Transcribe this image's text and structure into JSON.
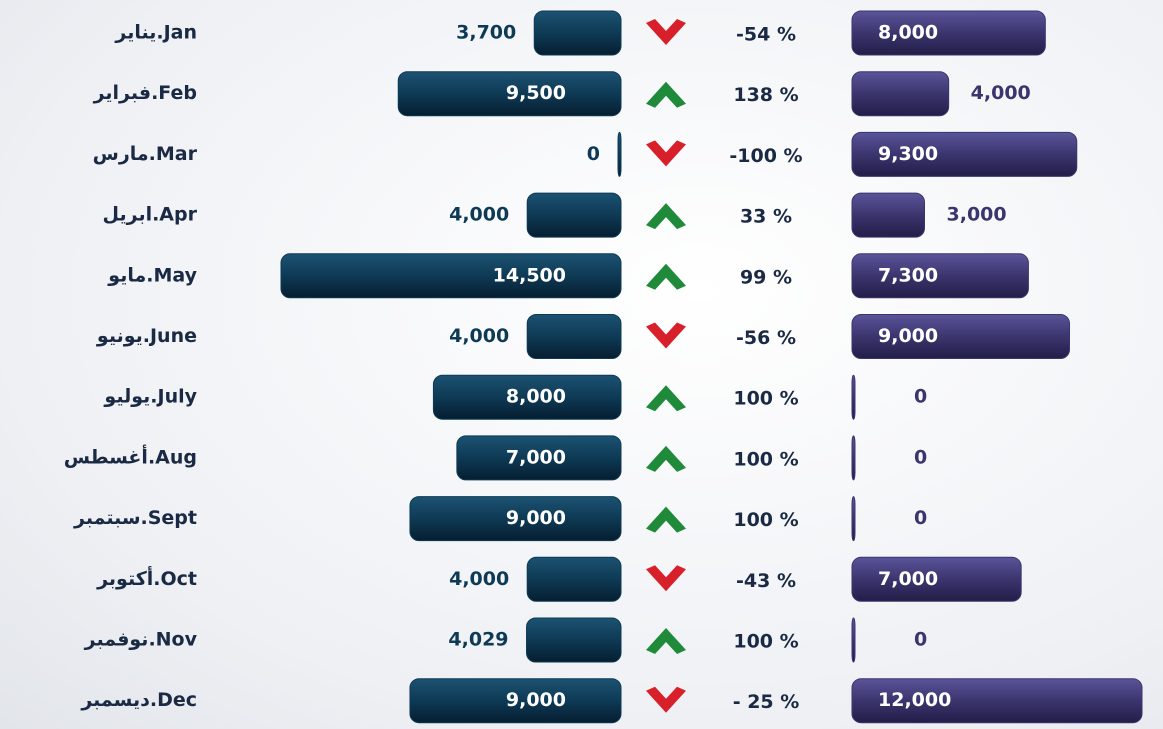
{
  "chart_data": {
    "type": "butterfly",
    "categories": [
      "يناير.Jan",
      "فبراير.Feb",
      "مارس.Mar",
      "ابريل.Apr",
      "مايو.May",
      "يونيو.June",
      "يوليو.July",
      "أغسطس.Aug",
      "سبتمبر.Sept",
      "أكتوبر.Oct",
      "نوفمبر.Nov",
      "ديسمبر.Dec"
    ],
    "series": [
      {
        "color": "#0e3a55",
        "values": [
          3700,
          9500,
          0,
          4000,
          14500,
          4000,
          8000,
          7000,
          9000,
          4000,
          4029,
          9000
        ],
        "value_labels": [
          "3,700",
          "9,500",
          "0",
          "4,000",
          "14,500",
          "4,000",
          "8,000",
          "7,000",
          "9,000",
          "4,000",
          "4,029",
          "9,000"
        ]
      },
      {
        "color": "#3b356e",
        "values": [
          8000,
          4000,
          9300,
          3000,
          7300,
          9000,
          0,
          0,
          0,
          7000,
          0,
          12000
        ],
        "value_labels": [
          "8,000",
          "4,000",
          "9,300",
          "3,000",
          "7,300",
          "9,000",
          "0",
          "0",
          "0",
          "7,000",
          "0",
          "12,000"
        ]
      }
    ],
    "change": {
      "values": [
        -54,
        138,
        -100,
        33,
        99,
        -56,
        100,
        100,
        100,
        -43,
        100,
        -25
      ],
      "value_labels": [
        "-54 %",
        "138 %",
        "-100 %",
        "33 %",
        "99 %",
        "-56 %",
        "100 %",
        "100 %",
        "100 %",
        "-43 %",
        "100 %",
        "- 25 %"
      ],
      "up_color": "#1f8a3a",
      "down_color": "#d8202a"
    }
  }
}
